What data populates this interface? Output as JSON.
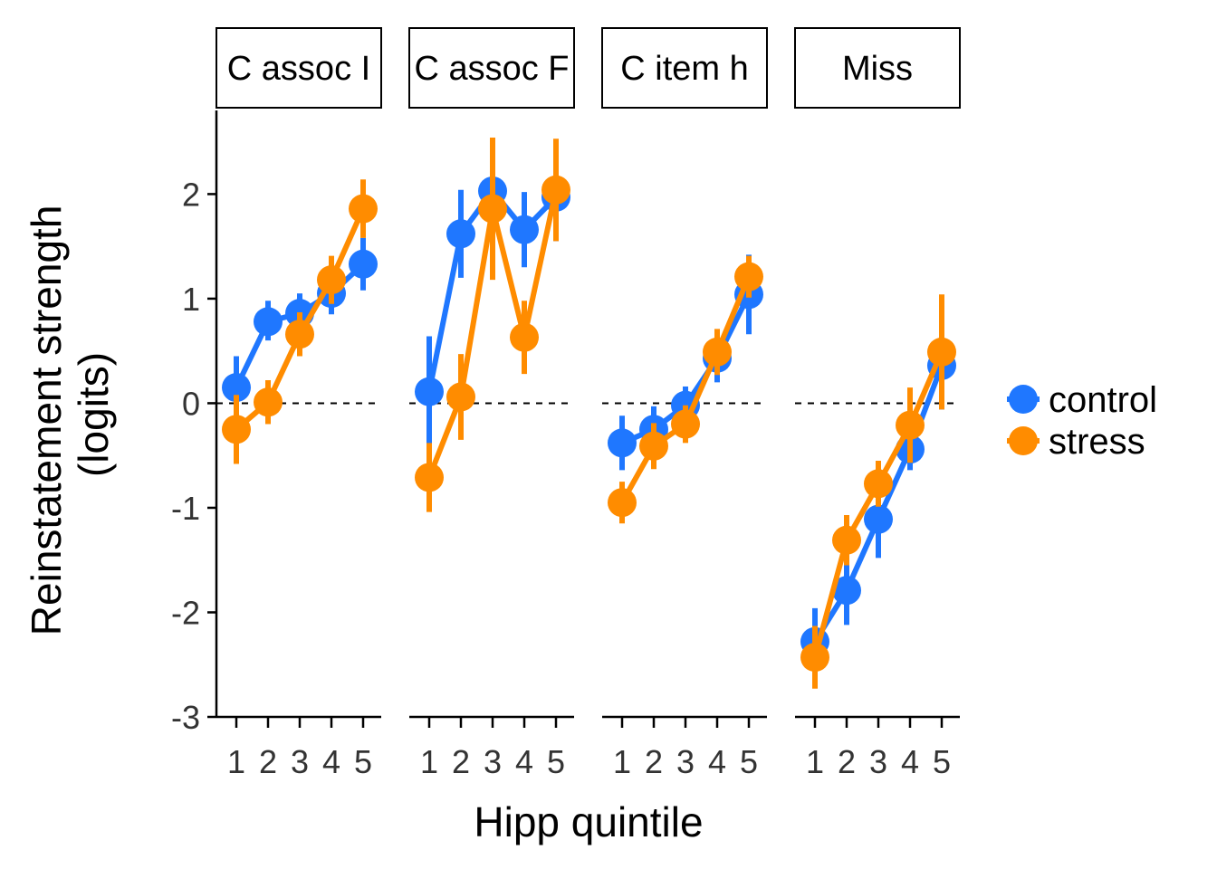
{
  "chart_data": {
    "type": "line",
    "xlabel": "Hipp quintile",
    "ylabel_lines": [
      "Reinstatement strength",
      "(logits)"
    ],
    "ylim": [
      -3,
      2.8
    ],
    "yticks": [
      "-3",
      "-2",
      "-1",
      "0",
      "1",
      "2"
    ],
    "x": [
      "1",
      "2",
      "3",
      "4",
      "5"
    ],
    "reference_line": 0,
    "legend_position": "right",
    "colors": {
      "control": "#1F77FF",
      "stress": "#FF8C00"
    },
    "legend": [
      {
        "key": "control",
        "label": "control"
      },
      {
        "key": "stress",
        "label": "stress"
      }
    ],
    "panels": [
      {
        "label": "C assoc I",
        "series": [
          {
            "name": "control",
            "values": [
              0.15,
              0.78,
              0.86,
              1.05,
              1.33
            ],
            "lower": [
              -0.15,
              0.6,
              0.7,
              0.85,
              1.08
            ],
            "upper": [
              0.45,
              0.98,
              1.05,
              1.25,
              1.58
            ]
          },
          {
            "name": "stress",
            "values": [
              -0.25,
              0.01,
              0.66,
              1.18,
              1.86
            ],
            "lower": [
              -0.58,
              -0.2,
              0.45,
              0.95,
              1.58
            ],
            "upper": [
              0.08,
              0.22,
              0.87,
              1.41,
              2.14
            ]
          }
        ]
      },
      {
        "label": "C assoc F",
        "series": [
          {
            "name": "control",
            "values": [
              0.11,
              1.62,
              2.03,
              1.66,
              1.97
            ],
            "lower": [
              -0.42,
              1.2,
              1.55,
              1.3,
              1.55
            ],
            "upper": [
              0.64,
              2.04,
              2.51,
              2.02,
              2.39
            ]
          },
          {
            "name": "stress",
            "values": [
              -0.71,
              0.06,
              1.86,
              0.63,
              2.04
            ],
            "lower": [
              -1.04,
              -0.35,
              1.18,
              0.28,
              1.55
            ],
            "upper": [
              -0.38,
              0.47,
              2.54,
              0.98,
              2.53
            ]
          }
        ]
      },
      {
        "label": "C item h",
        "series": [
          {
            "name": "control",
            "values": [
              -0.38,
              -0.25,
              -0.02,
              0.43,
              1.04
            ],
            "lower": [
              -0.64,
              -0.47,
              -0.2,
              0.2,
              0.66
            ],
            "upper": [
              -0.12,
              -0.03,
              0.16,
              0.66,
              1.42
            ]
          },
          {
            "name": "stress",
            "values": [
              -0.95,
              -0.41,
              -0.2,
              0.49,
              1.21
            ],
            "lower": [
              -1.15,
              -0.63,
              -0.38,
              0.27,
              1.01
            ],
            "upper": [
              -0.75,
              -0.19,
              -0.02,
              0.71,
              1.41
            ]
          }
        ]
      },
      {
        "label": "Miss",
        "series": [
          {
            "name": "control",
            "values": [
              -2.28,
              -1.79,
              -1.11,
              -0.44,
              0.36
            ],
            "lower": [
              -2.6,
              -2.12,
              -1.48,
              -0.64,
              -0.06
            ],
            "upper": [
              -1.96,
              -1.46,
              -0.74,
              -0.24,
              0.78
            ]
          },
          {
            "name": "stress",
            "values": [
              -2.43,
              -1.31,
              -0.77,
              -0.21,
              0.49
            ],
            "lower": [
              -2.73,
              -1.55,
              -0.99,
              -0.57,
              -0.06
            ],
            "upper": [
              -2.13,
              -1.07,
              -0.55,
              0.15,
              1.04
            ]
          }
        ]
      }
    ]
  }
}
